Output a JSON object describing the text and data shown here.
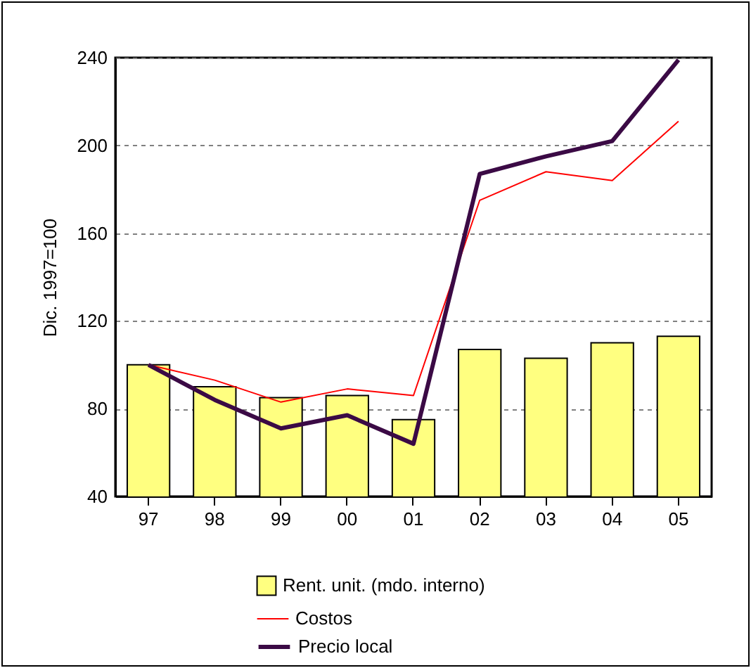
{
  "chart_data": {
    "type": "bar",
    "ylabel": "Dic. 1997=100",
    "categories": [
      "97",
      "98",
      "99",
      "00",
      "01",
      "02",
      "03",
      "04",
      "05"
    ],
    "series": [
      {
        "name": "Rent. unit. (mdo. interno)",
        "color": "#ffff80",
        "values": [
          100,
          90,
          85,
          86,
          75,
          107,
          103,
          110,
          113
        ]
      },
      {
        "name": "Costos",
        "type": "line",
        "color": "#ff0000",
        "values": [
          100,
          93,
          83,
          89,
          86,
          175,
          188,
          184,
          211
        ]
      },
      {
        "name": "Precio local",
        "type": "line",
        "color": "#3b0a45",
        "values": [
          100,
          84,
          71,
          77,
          64,
          187,
          195,
          202,
          239
        ]
      }
    ],
    "ylim": [
      40,
      240
    ],
    "yticks": [
      40,
      80,
      120,
      160,
      200,
      240
    ],
    "grid": "y",
    "legend": "bottom"
  }
}
